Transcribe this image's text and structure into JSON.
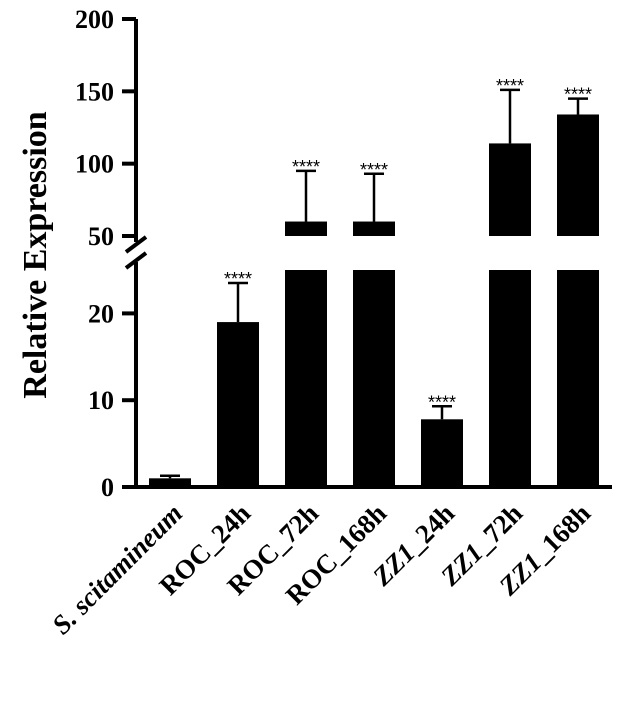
{
  "chart_data": {
    "type": "bar",
    "ylabel": "Relative Expression",
    "xlabel": "",
    "title": "",
    "categories": [
      "S. scitamineum",
      "ROC_24h",
      "ROC_72h",
      "ROC_168h",
      "ZZ1_24h",
      "ZZ1_72h",
      "ZZ1_168h"
    ],
    "category_italic": [
      true,
      false,
      false,
      false,
      false,
      false,
      false
    ],
    "category_italic_prefix": [
      "",
      "",
      "",
      "",
      "ZZ1",
      "ZZ1",
      "ZZ1"
    ],
    "values": [
      1.0,
      19.0,
      60.0,
      60.0,
      7.8,
      114.0,
      134.0
    ],
    "error_upper": [
      1.3,
      23.5,
      95.0,
      93.0,
      9.3,
      151.0,
      145.0
    ],
    "significance": [
      "",
      "****",
      "****",
      "****",
      "****",
      "****",
      "****"
    ],
    "broken_axis": true,
    "lower_segment": {
      "range": [
        0,
        25
      ],
      "ticks": [
        0,
        10,
        20
      ]
    },
    "upper_segment": {
      "range": [
        50,
        200
      ],
      "ticks": [
        50,
        100,
        150,
        200
      ]
    },
    "bar_color": "#000000",
    "grid": false,
    "legend": "none"
  }
}
